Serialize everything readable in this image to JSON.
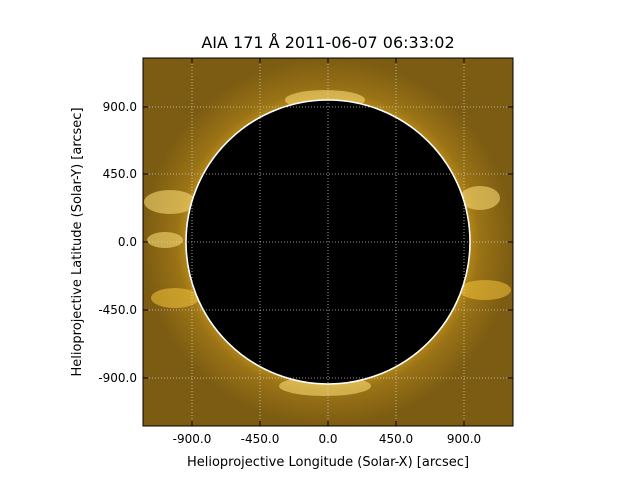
{
  "plot": {
    "title": "AIA 171 Å 2011-06-07 06:33:02",
    "xlabel": "Helioprojective Longitude (Solar-X) [arcsec]",
    "ylabel": "Helioprojective Latitude (Solar-Y) [arcsec]",
    "x_range": [
      -1229,
      1229
    ],
    "y_range": [
      -1229,
      1229
    ],
    "solar_radius_arcsec": 945,
    "x_ticks": [
      "-900.0",
      "-450.0",
      "0.0",
      "450.0",
      "900.0"
    ],
    "y_ticks": [
      "900.0",
      "450.0",
      "0.0",
      "-450.0",
      "-900.0"
    ],
    "grid": true,
    "colors": {
      "background_sky": "#8a6a14",
      "corona_bright": "#ffd24a",
      "limb": "#ffffff",
      "disk": "#000000",
      "grid": "#d8d8d8"
    }
  }
}
